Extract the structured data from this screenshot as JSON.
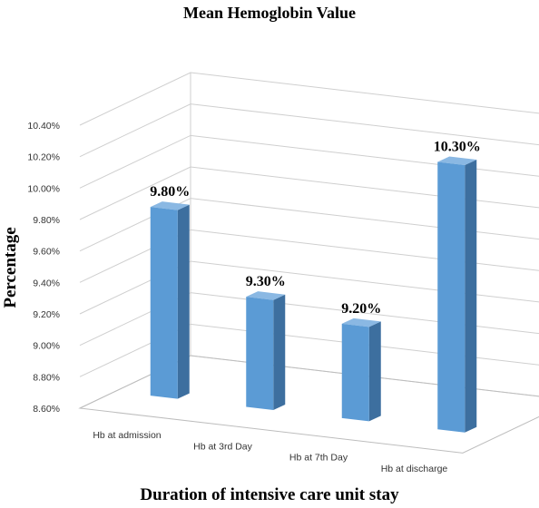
{
  "chart_data": {
    "type": "bar",
    "title": "Mean Hemoglobin Value",
    "xlabel": "Duration of intensive care unit stay",
    "ylabel": "Percentage",
    "categories": [
      "Hb at admission",
      "Hb at 3rd Day",
      "Hb at 7th Day",
      "Hb at discharge"
    ],
    "values": [
      9.8,
      9.3,
      9.2,
      10.3
    ],
    "data_labels": [
      "9.80%",
      "9.30%",
      "9.20%",
      "10.30%"
    ],
    "yticks": [
      "8.60%",
      "8.80%",
      "9.00%",
      "9.20%",
      "9.40%",
      "9.60%",
      "9.80%",
      "10.00%",
      "10.20%",
      "10.40%"
    ],
    "ylim": [
      8.6,
      10.4
    ],
    "grid": true,
    "style": "3d-column",
    "colors": {
      "bar_front": "#5b9bd5",
      "bar_side": "#3d6f9f",
      "bar_top": "#8ab8e3"
    }
  }
}
